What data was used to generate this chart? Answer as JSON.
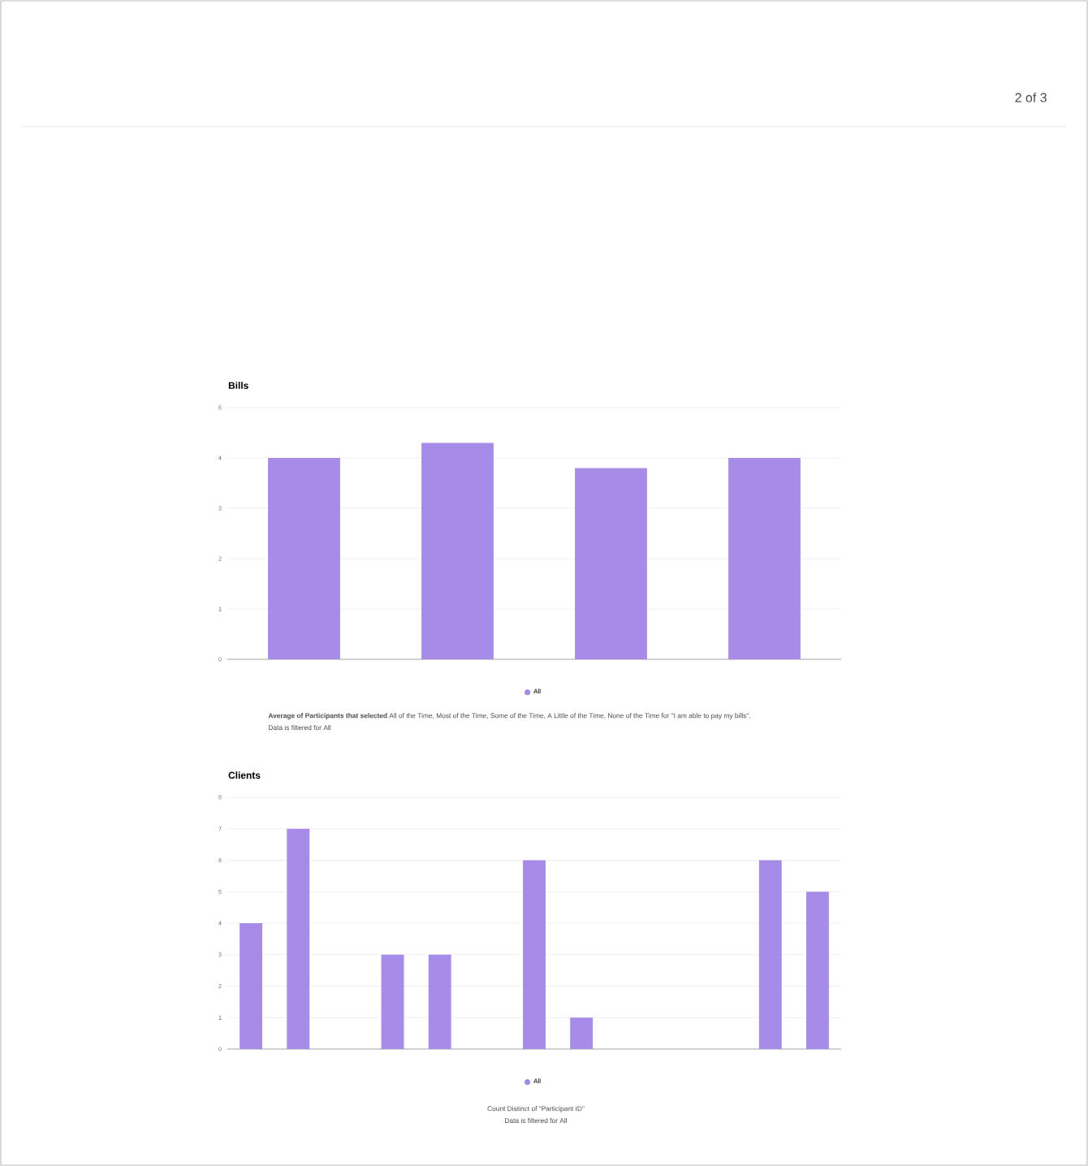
{
  "chart_data": [
    {
      "type": "bar",
      "title": "Bills",
      "categories": [
        null,
        null,
        null,
        null
      ],
      "series": [
        {
          "name": "All",
          "color": "#a78be8",
          "values": [
            4,
            4.3,
            3.8,
            4
          ]
        }
      ],
      "ylim": [
        0,
        5
      ],
      "yticks": [
        0,
        1,
        2,
        3,
        4,
        5
      ],
      "grid": "y",
      "legend": "bottom",
      "annotations": [
        "2 of 3",
        "**Average of Participants that selected** All of the Time, Most of the Time, Some of the Time, A Little of the Time, None of the Time for \"I am able to pay my bills\".",
        "Data is filtered for All"
      ]
    },
    {
      "type": "bar",
      "title": "Clients",
      "categories": [
        null,
        null,
        null,
        null,
        null,
        null,
        null,
        null,
        null,
        null,
        null,
        null,
        null
      ],
      "series": [
        {
          "name": "All",
          "color": "#a78be8",
          "values": [
            4,
            7,
            0,
            3,
            3,
            0,
            6,
            1,
            0,
            0,
            0,
            6,
            5
          ]
        }
      ],
      "ylim": [
        0,
        8
      ],
      "yticks": [
        0,
        1,
        2,
        3,
        4,
        5,
        6,
        7,
        8
      ],
      "grid": "y",
      "legend": "bottom",
      "annotations": [
        "Count Distinct of \"Participant ID\"",
        "Data is filtered for All"
      ]
    }
  ]
}
